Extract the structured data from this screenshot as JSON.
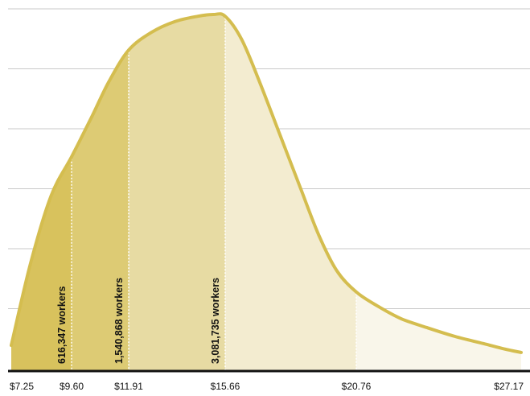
{
  "chart_data": {
    "type": "area",
    "title": "",
    "xlabel": "",
    "ylabel": "",
    "x_ticks": [
      "$7.25",
      "$9.60",
      "$11.91",
      "$15.66",
      "$20.76",
      "$27.17"
    ],
    "x_tick_values": [
      7.25,
      9.6,
      11.91,
      15.66,
      20.76,
      27.17
    ],
    "ylim": [
      0,
      1.0
    ],
    "gridlines": 6,
    "grid": true,
    "curve": {
      "x": [
        7.25,
        8.0,
        8.8,
        9.6,
        10.4,
        11.1,
        11.91,
        12.8,
        13.7,
        14.6,
        15.2,
        15.66,
        16.3,
        17.0,
        17.8,
        18.6,
        19.3,
        20.0,
        20.76,
        21.6,
        22.5,
        23.5,
        24.6,
        25.7,
        26.5,
        27.17
      ],
      "y": [
        0.07,
        0.3,
        0.49,
        0.6,
        0.71,
        0.81,
        0.9,
        0.95,
        0.98,
        0.995,
        1.0,
        0.995,
        0.93,
        0.81,
        0.66,
        0.51,
        0.38,
        0.28,
        0.22,
        0.18,
        0.145,
        0.12,
        0.095,
        0.075,
        0.06,
        0.05
      ]
    },
    "segments": [
      {
        "from": 7.25,
        "to": 9.6,
        "color": "#d8c25d",
        "label": "616,347 workers"
      },
      {
        "from": 9.6,
        "to": 11.91,
        "color": "#ddcb74",
        "label": "1,540,868 workers"
      },
      {
        "from": 11.91,
        "to": 15.66,
        "color": "#e7dba3",
        "label": "3,081,735 workers"
      },
      {
        "from": 15.66,
        "to": 20.76,
        "color": "#f3ecd0",
        "label": ""
      },
      {
        "from": 20.76,
        "to": 27.17,
        "color": "#f9f6ea",
        "label": ""
      }
    ],
    "colors": {
      "curve": "#d4bd4f",
      "grid": "#c9c9c9",
      "baseline": "#111111",
      "divider": "#ffffff"
    }
  }
}
